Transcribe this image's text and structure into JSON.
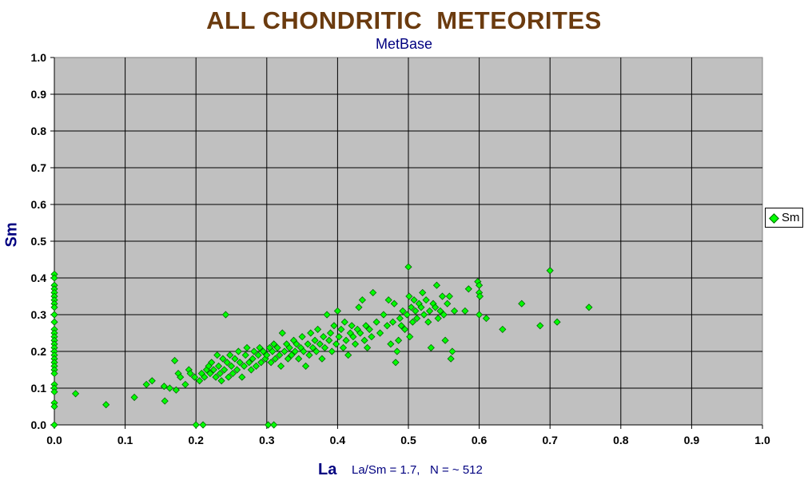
{
  "chart_data": {
    "type": "scatter",
    "title": "ALL CHONDRITIC  METEORITES",
    "subtitle": "MetBase",
    "xlabel": "La",
    "ylabel": "Sm",
    "note": "La/Sm = 1.7,   N = ~ 512",
    "xlim": [
      0,
      1.0
    ],
    "ylim": [
      0,
      1.0
    ],
    "x_ticks": [
      "0.0",
      "0.1",
      "0.2",
      "0.3",
      "0.4",
      "0.5",
      "0.6",
      "0.7",
      "0.8",
      "0.9",
      "1.0"
    ],
    "y_ticks": [
      "0.0",
      "0.1",
      "0.2",
      "0.3",
      "0.4",
      "0.5",
      "0.6",
      "0.7",
      "0.8",
      "0.9",
      "1.0"
    ],
    "grid": true,
    "legend": "right",
    "colors": {
      "marker": "#00ff00",
      "plot_bg": "#c0c0c0",
      "title": "#6b3b0f",
      "label": "#000080"
    },
    "series": [
      {
        "name": "Sm",
        "points": [
          [
            0.0,
            0.41
          ],
          [
            0.0,
            0.4
          ],
          [
            0.0,
            0.38
          ],
          [
            0.0,
            0.37
          ],
          [
            0.0,
            0.36
          ],
          [
            0.0,
            0.35
          ],
          [
            0.0,
            0.34
          ],
          [
            0.0,
            0.33
          ],
          [
            0.0,
            0.32
          ],
          [
            0.0,
            0.3
          ],
          [
            0.0,
            0.28
          ],
          [
            0.0,
            0.26
          ],
          [
            0.0,
            0.25
          ],
          [
            0.0,
            0.24
          ],
          [
            0.0,
            0.23
          ],
          [
            0.0,
            0.22
          ],
          [
            0.0,
            0.21
          ],
          [
            0.0,
            0.2
          ],
          [
            0.0,
            0.19
          ],
          [
            0.0,
            0.18
          ],
          [
            0.0,
            0.17
          ],
          [
            0.0,
            0.16
          ],
          [
            0.0,
            0.15
          ],
          [
            0.0,
            0.14
          ],
          [
            0.0,
            0.11
          ],
          [
            0.0,
            0.1
          ],
          [
            0.0,
            0.09
          ],
          [
            0.0,
            0.06
          ],
          [
            0.0,
            0.05
          ],
          [
            0.0,
            0.0
          ],
          [
            0.03,
            0.085
          ],
          [
            0.073,
            0.055
          ],
          [
            0.113,
            0.075
          ],
          [
            0.13,
            0.11
          ],
          [
            0.138,
            0.12
          ],
          [
            0.155,
            0.105
          ],
          [
            0.156,
            0.065
          ],
          [
            0.163,
            0.1
          ],
          [
            0.172,
            0.095
          ],
          [
            0.17,
            0.175
          ],
          [
            0.175,
            0.14
          ],
          [
            0.178,
            0.13
          ],
          [
            0.185,
            0.11
          ],
          [
            0.19,
            0.15
          ],
          [
            0.192,
            0.14
          ],
          [
            0.198,
            0.13
          ],
          [
            0.2,
            0.0
          ],
          [
            0.21,
            0.0
          ],
          [
            0.205,
            0.12
          ],
          [
            0.208,
            0.14
          ],
          [
            0.212,
            0.13
          ],
          [
            0.215,
            0.15
          ],
          [
            0.218,
            0.16
          ],
          [
            0.22,
            0.14
          ],
          [
            0.222,
            0.17
          ],
          [
            0.225,
            0.15
          ],
          [
            0.228,
            0.13
          ],
          [
            0.23,
            0.19
          ],
          [
            0.232,
            0.16
          ],
          [
            0.234,
            0.14
          ],
          [
            0.236,
            0.12
          ],
          [
            0.238,
            0.18
          ],
          [
            0.24,
            0.15
          ],
          [
            0.242,
            0.3
          ],
          [
            0.244,
            0.17
          ],
          [
            0.246,
            0.13
          ],
          [
            0.248,
            0.19
          ],
          [
            0.25,
            0.16
          ],
          [
            0.252,
            0.14
          ],
          [
            0.255,
            0.18
          ],
          [
            0.258,
            0.15
          ],
          [
            0.26,
            0.2
          ],
          [
            0.262,
            0.17
          ],
          [
            0.265,
            0.13
          ],
          [
            0.268,
            0.16
          ],
          [
            0.27,
            0.19
          ],
          [
            0.272,
            0.21
          ],
          [
            0.275,
            0.17
          ],
          [
            0.278,
            0.15
          ],
          [
            0.28,
            0.18
          ],
          [
            0.282,
            0.2
          ],
          [
            0.285,
            0.16
          ],
          [
            0.288,
            0.19
          ],
          [
            0.29,
            0.21
          ],
          [
            0.292,
            0.17
          ],
          [
            0.295,
            0.2
          ],
          [
            0.298,
            0.18
          ],
          [
            0.3,
            0.19
          ],
          [
            0.302,
            0.0
          ],
          [
            0.31,
            0.0
          ],
          [
            0.304,
            0.21
          ],
          [
            0.306,
            0.17
          ],
          [
            0.308,
            0.2
          ],
          [
            0.31,
            0.22
          ],
          [
            0.312,
            0.18
          ],
          [
            0.315,
            0.21
          ],
          [
            0.318,
            0.19
          ],
          [
            0.32,
            0.16
          ],
          [
            0.322,
            0.25
          ],
          [
            0.325,
            0.2
          ],
          [
            0.328,
            0.22
          ],
          [
            0.33,
            0.18
          ],
          [
            0.332,
            0.21
          ],
          [
            0.335,
            0.19
          ],
          [
            0.338,
            0.23
          ],
          [
            0.34,
            0.2
          ],
          [
            0.342,
            0.22
          ],
          [
            0.345,
            0.18
          ],
          [
            0.348,
            0.21
          ],
          [
            0.35,
            0.24
          ],
          [
            0.352,
            0.2
          ],
          [
            0.355,
            0.16
          ],
          [
            0.358,
            0.22
          ],
          [
            0.36,
            0.19
          ],
          [
            0.362,
            0.25
          ],
          [
            0.365,
            0.21
          ],
          [
            0.368,
            0.23
          ],
          [
            0.37,
            0.2
          ],
          [
            0.372,
            0.26
          ],
          [
            0.375,
            0.22
          ],
          [
            0.378,
            0.18
          ],
          [
            0.38,
            0.24
          ],
          [
            0.382,
            0.21
          ],
          [
            0.385,
            0.3
          ],
          [
            0.388,
            0.23
          ],
          [
            0.39,
            0.25
          ],
          [
            0.392,
            0.2
          ],
          [
            0.395,
            0.27
          ],
          [
            0.398,
            0.22
          ],
          [
            0.4,
            0.31
          ],
          [
            0.402,
            0.24
          ],
          [
            0.405,
            0.26
          ],
          [
            0.408,
            0.21
          ],
          [
            0.41,
            0.28
          ],
          [
            0.412,
            0.23
          ],
          [
            0.415,
            0.19
          ],
          [
            0.418,
            0.25
          ],
          [
            0.42,
            0.27
          ],
          [
            0.422,
            0.24
          ],
          [
            0.425,
            0.22
          ],
          [
            0.428,
            0.26
          ],
          [
            0.43,
            0.32
          ],
          [
            0.432,
            0.25
          ],
          [
            0.435,
            0.34
          ],
          [
            0.438,
            0.23
          ],
          [
            0.44,
            0.27
          ],
          [
            0.442,
            0.21
          ],
          [
            0.445,
            0.26
          ],
          [
            0.448,
            0.24
          ],
          [
            0.45,
            0.36
          ],
          [
            0.455,
            0.28
          ],
          [
            0.46,
            0.25
          ],
          [
            0.465,
            0.3
          ],
          [
            0.47,
            0.27
          ],
          [
            0.472,
            0.34
          ],
          [
            0.475,
            0.22
          ],
          [
            0.478,
            0.28
          ],
          [
            0.48,
            0.33
          ],
          [
            0.482,
            0.17
          ],
          [
            0.484,
            0.2
          ],
          [
            0.486,
            0.23
          ],
          [
            0.488,
            0.29
          ],
          [
            0.49,
            0.27
          ],
          [
            0.492,
            0.31
          ],
          [
            0.495,
            0.26
          ],
          [
            0.498,
            0.3
          ],
          [
            0.5,
            0.43
          ],
          [
            0.501,
            0.35
          ],
          [
            0.502,
            0.24
          ],
          [
            0.504,
            0.32
          ],
          [
            0.506,
            0.28
          ],
          [
            0.508,
            0.34
          ],
          [
            0.51,
            0.31
          ],
          [
            0.512,
            0.29
          ],
          [
            0.515,
            0.33
          ],
          [
            0.518,
            0.32
          ],
          [
            0.52,
            0.36
          ],
          [
            0.522,
            0.3
          ],
          [
            0.525,
            0.34
          ],
          [
            0.528,
            0.28
          ],
          [
            0.53,
            0.31
          ],
          [
            0.532,
            0.21
          ],
          [
            0.535,
            0.33
          ],
          [
            0.538,
            0.32
          ],
          [
            0.54,
            0.38
          ],
          [
            0.542,
            0.29
          ],
          [
            0.545,
            0.31
          ],
          [
            0.548,
            0.35
          ],
          [
            0.55,
            0.3
          ],
          [
            0.552,
            0.23
          ],
          [
            0.555,
            0.33
          ],
          [
            0.558,
            0.35
          ],
          [
            0.56,
            0.18
          ],
          [
            0.562,
            0.2
          ],
          [
            0.565,
            0.31
          ],
          [
            0.58,
            0.31
          ],
          [
            0.585,
            0.37
          ],
          [
            0.598,
            0.39
          ],
          [
            0.6,
            0.38
          ],
          [
            0.6,
            0.36
          ],
          [
            0.601,
            0.35
          ],
          [
            0.6,
            0.3
          ],
          [
            0.61,
            0.29
          ],
          [
            0.633,
            0.26
          ],
          [
            0.66,
            0.33
          ],
          [
            0.686,
            0.27
          ],
          [
            0.7,
            0.42
          ],
          [
            0.71,
            0.28
          ],
          [
            0.755,
            0.32
          ]
        ]
      }
    ]
  }
}
